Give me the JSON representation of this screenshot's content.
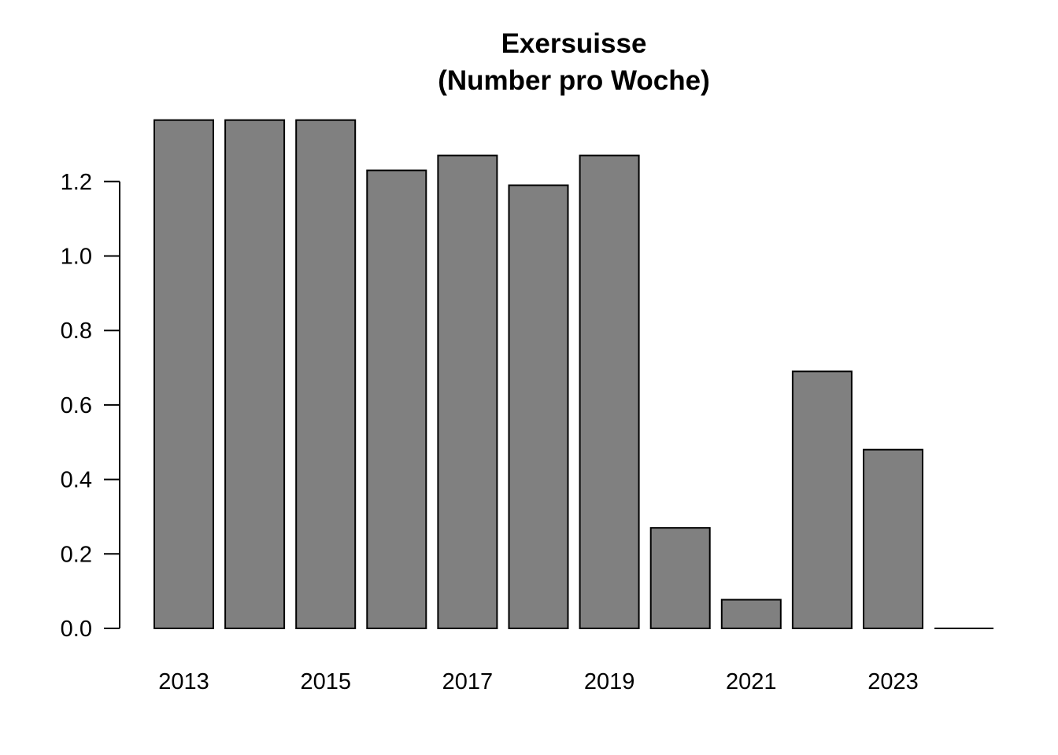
{
  "chart_data": {
    "type": "bar",
    "title": "Exersuisse",
    "subtitle": "(Number pro Woche)",
    "xlabel": "",
    "ylabel": "",
    "categories": [
      "2013",
      "2014",
      "2015",
      "2016",
      "2017",
      "2018",
      "2019",
      "2020",
      "2021",
      "2022",
      "2023",
      "2024"
    ],
    "x_tick_labels_shown": [
      "2013",
      "",
      "2015",
      "",
      "2017",
      "",
      "2019",
      "",
      "2021",
      "",
      "2023",
      ""
    ],
    "values": [
      1.365,
      1.365,
      1.365,
      1.23,
      1.27,
      1.19,
      1.27,
      0.27,
      0.077,
      0.69,
      0.48,
      0.0
    ],
    "y_ticks": [
      "0.0",
      "0.2",
      "0.4",
      "0.6",
      "0.8",
      "1.0",
      "1.2"
    ],
    "y_tick_values": [
      0.0,
      0.2,
      0.4,
      0.6,
      0.8,
      1.0,
      1.2
    ],
    "ylim": [
      0,
      1.4
    ],
    "grid": false,
    "bar_color": "#808080",
    "border_color": "#000000"
  }
}
